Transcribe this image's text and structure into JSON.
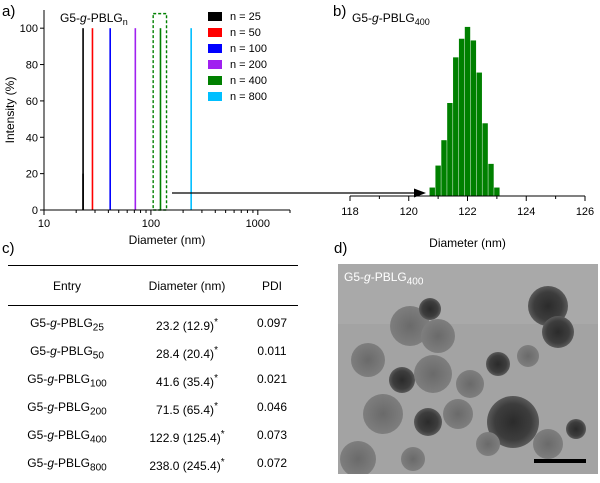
{
  "panel_a": {
    "letter": "a)",
    "chart_data": {
      "type": "bar",
      "title_base": "G5-",
      "title_italic": "g",
      "title_rest": "-PBLG",
      "title_sub": "n",
      "xlabel": "Diameter (nm)",
      "ylabel": "Intensity (%)",
      "xscale": "log",
      "xlim": [
        10,
        2000
      ],
      "ylim": [
        0,
        110
      ],
      "xticks": [
        10,
        100,
        1000
      ],
      "xtick_labels": [
        "10",
        "100",
        "1000"
      ],
      "yticks": [
        0,
        20,
        40,
        60,
        80,
        100
      ],
      "ytick_labels": [
        "0",
        "20",
        "40",
        "60",
        "80",
        "100"
      ],
      "legend_position": "top-right",
      "series": [
        {
          "name": "n = 25",
          "color": "#000000",
          "peaks": [
            {
              "x": 23.2,
              "y": 100
            },
            {
              "x": 23.2,
              "y": 20
            }
          ]
        },
        {
          "name": "n = 50",
          "color": "#ff0000",
          "peaks": [
            {
              "x": 28.4,
              "y": 100
            }
          ]
        },
        {
          "name": "n = 100",
          "color": "#0000ff",
          "peaks": [
            {
              "x": 41.6,
              "y": 100
            }
          ]
        },
        {
          "name": "n = 200",
          "color": "#a020f0",
          "peaks": [
            {
              "x": 71.5,
              "y": 100
            }
          ]
        },
        {
          "name": "n = 400",
          "color": "#008000",
          "peaks": [
            {
              "x": 122.9,
              "y": 100
            }
          ]
        },
        {
          "name": "n = 800",
          "color": "#00bfff",
          "peaks": [
            {
              "x": 238.0,
              "y": 100
            }
          ]
        }
      ],
      "highlight_box": {
        "x_from": 105,
        "x_to": 140,
        "y_from": 0,
        "y_to": 108,
        "color": "#008000"
      }
    }
  },
  "panel_b": {
    "letter": "b)",
    "chart_data": {
      "type": "bar",
      "title_base": "G5-",
      "title_italic": "g",
      "title_rest": "-PBLG",
      "title_sub": "400",
      "xlabel": "Diameter (nm)",
      "xlim": [
        118,
        126
      ],
      "ylim": [
        0,
        110
      ],
      "xticks": [
        118,
        120,
        122,
        124,
        126
      ],
      "xtick_labels": [
        "118",
        "120",
        "122",
        "124",
        "126"
      ],
      "bar_width": 0.2,
      "color": "#008000",
      "bars": [
        {
          "x": 120.8,
          "y": 5
        },
        {
          "x": 121.0,
          "y": 18
        },
        {
          "x": 121.2,
          "y": 33
        },
        {
          "x": 121.4,
          "y": 55
        },
        {
          "x": 121.6,
          "y": 82
        },
        {
          "x": 121.8,
          "y": 93
        },
        {
          "x": 122.0,
          "y": 100
        },
        {
          "x": 122.2,
          "y": 92
        },
        {
          "x": 122.4,
          "y": 73
        },
        {
          "x": 122.6,
          "y": 43
        },
        {
          "x": 122.8,
          "y": 19
        },
        {
          "x": 123.0,
          "y": 5
        }
      ]
    }
  },
  "panel_c": {
    "letter": "c)",
    "headers": [
      "Entry",
      "Diameter (nm)",
      "PDI"
    ],
    "rows": [
      {
        "entry_pre": "G5-",
        "entry_it": "g",
        "entry_mid": "-PBLG",
        "entry_sub": "25",
        "diameter": "23.2 (12.9)",
        "mark": "*",
        "pdi": "0.097"
      },
      {
        "entry_pre": "G5-",
        "entry_it": "g",
        "entry_mid": "-PBLG",
        "entry_sub": "50",
        "diameter": "28.4 (20.4)",
        "mark": "*",
        "pdi": "0.011"
      },
      {
        "entry_pre": "G5-",
        "entry_it": "g",
        "entry_mid": "-PBLG",
        "entry_sub": "100",
        "diameter": "41.6 (35.4)",
        "mark": "*",
        "pdi": "0.021"
      },
      {
        "entry_pre": "G5-",
        "entry_it": "g",
        "entry_mid": "-PBLG",
        "entry_sub": "200",
        "diameter": "71.5 (65.4)",
        "mark": "*",
        "pdi": "0.046"
      },
      {
        "entry_pre": "G5-",
        "entry_it": "g",
        "entry_mid": "-PBLG",
        "entry_sub": "400",
        "diameter": "122.9 (125.4)",
        "mark": "*",
        "pdi": "0.073"
      },
      {
        "entry_pre": "G5-",
        "entry_it": "g",
        "entry_mid": "-PBLG",
        "entry_sub": "800",
        "diameter": "238.0 (245.4)",
        "mark": "*",
        "pdi": "0.072"
      }
    ]
  },
  "panel_d": {
    "letter": "d)",
    "label_pre": "G5-",
    "label_it": "g",
    "label_mid": "-PBLG",
    "label_sub": "400"
  }
}
